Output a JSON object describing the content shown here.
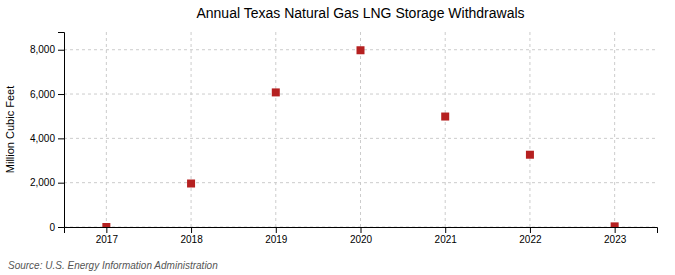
{
  "chart_data": {
    "type": "scatter",
    "title": "Annual Texas Natural Gas LNG Storage Withdrawals",
    "ylabel": "Million Cubic Feet",
    "annotations": [
      "Source: U.S. Energy Information Administration"
    ],
    "x": [
      2017,
      2018,
      2019,
      2020,
      2021,
      2022,
      2023
    ],
    "values": [
      0,
      1963,
      6074,
      7976,
      4985,
      3262,
      28
    ],
    "color": "#b52020",
    "marker": "square",
    "xlim": [
      2016.5,
      2023.5
    ],
    "xticks": [
      2017,
      2018,
      2019,
      2020,
      2021,
      2022,
      2023
    ],
    "ylim": [
      0,
      8800
    ],
    "yticks": [
      0,
      {
        "value": 2000,
        "label": "2,000"
      },
      {
        "value": 4000,
        "label": "4,000"
      },
      {
        "value": 6000,
        "label": "6,000"
      },
      {
        "value": 8000,
        "label": "8,000"
      }
    ],
    "grid": true
  }
}
